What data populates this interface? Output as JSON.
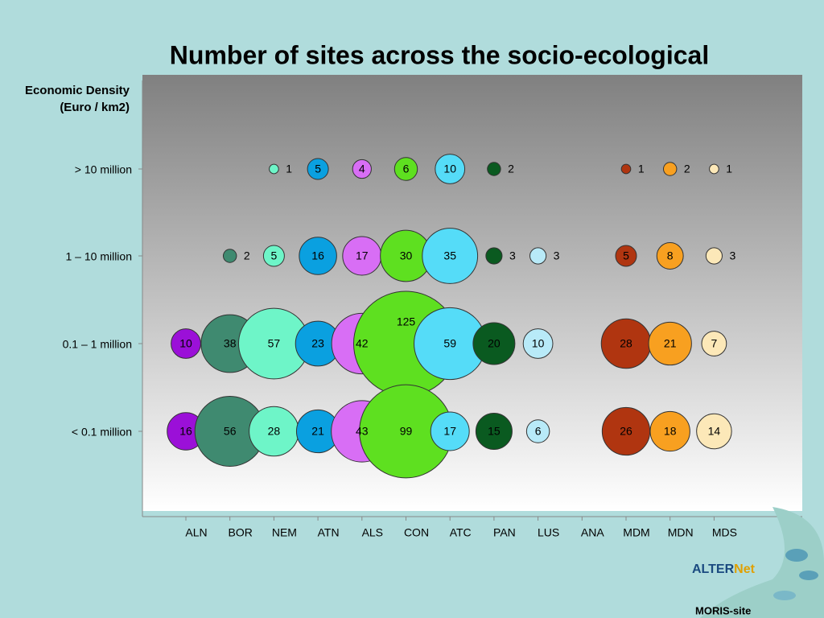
{
  "chart_data": {
    "type": "bubble",
    "title": "Number of sites across the socio-ecological",
    "y_label": [
      "Economic Density",
      "(Euro / km2)"
    ],
    "categories": [
      "ALN",
      "BOR",
      "NEM",
      "ATN",
      "ALS",
      "CON",
      "ATC",
      "PAN",
      "LUS",
      "ANA",
      "MDM",
      "MDN",
      "MDS"
    ],
    "y_categories": [
      "> 10 million",
      "1 – 10 million",
      "0.1 – 1 million",
      "< 0.1 million"
    ],
    "series": [
      {
        "color": "#9b10d8",
        "values": [
          null,
          null,
          10,
          16
        ]
      },
      {
        "color": "#3f8a70",
        "values": [
          null,
          2,
          38,
          56
        ]
      },
      {
        "color": "#6ef5c8",
        "values": [
          1,
          5,
          57,
          28
        ]
      },
      {
        "color": "#0aa0e0",
        "values": [
          5,
          16,
          23,
          21
        ]
      },
      {
        "color": "#d86ef5",
        "values": [
          4,
          17,
          42,
          43
        ]
      },
      {
        "color": "#5ee020",
        "values": [
          6,
          30,
          125,
          99
        ]
      },
      {
        "color": "#55dcf8",
        "values": [
          10,
          35,
          59,
          17
        ]
      },
      {
        "color": "#0a5a20",
        "values": [
          2,
          3,
          20,
          15
        ]
      },
      {
        "color": "#b8eaf8",
        "values": [
          null,
          3,
          10,
          6
        ]
      },
      {
        "color": "#cccccc",
        "values": [
          null,
          null,
          null,
          null
        ]
      },
      {
        "color": "#b03510",
        "values": [
          1,
          5,
          28,
          26
        ]
      },
      {
        "color": "#f8a020",
        "values": [
          2,
          8,
          21,
          18
        ]
      },
      {
        "color": "#fce8b8",
        "values": [
          1,
          3,
          7,
          14
        ]
      }
    ]
  },
  "logo": {
    "part1": "ALTER",
    "part2": "Net"
  },
  "footer": "MORIS-site"
}
